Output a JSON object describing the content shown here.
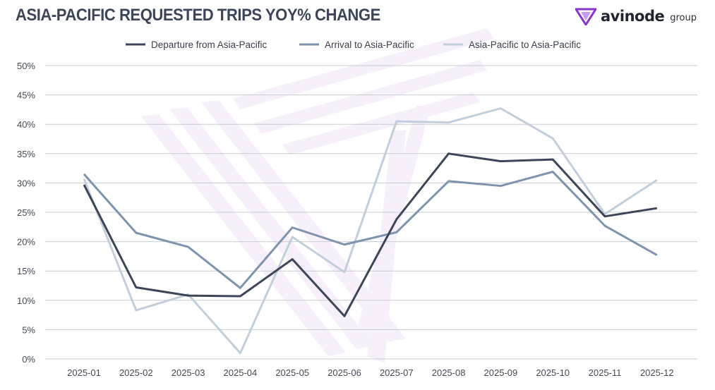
{
  "header": {
    "title": "ASIA-PACIFIC REQUESTED TRIPS YOY% CHANGE",
    "brand_name": "avinode",
    "brand_suffix": "group",
    "brand_icon": "avinode-logo-icon"
  },
  "chart_data": {
    "type": "line",
    "title": "ASIA-PACIFIC REQUESTED TRIPS YOY% CHANGE",
    "xlabel": "",
    "ylabel": "",
    "categories": [
      "2025-01",
      "2025-02",
      "2025-03",
      "2025-04",
      "2025-05",
      "2025-06",
      "2025-07",
      "2025-08",
      "2025-09",
      "2025-10",
      "2025-11",
      "2025-12"
    ],
    "ylim": [
      0,
      50
    ],
    "yticks": [
      0,
      5,
      10,
      15,
      20,
      25,
      30,
      35,
      40,
      45,
      50
    ],
    "ytick_labels": [
      "0%",
      "5%",
      "10%",
      "15%",
      "20%",
      "25%",
      "30%",
      "35%",
      "40%",
      "45%",
      "50%"
    ],
    "grid": "horizontal",
    "legend_position": "top",
    "series": [
      {
        "name": "Departure from Asia-Pacific",
        "color": "#3d4659",
        "values": [
          29.7,
          12.2,
          10.8,
          10.7,
          17.0,
          7.3,
          23.8,
          35.0,
          33.7,
          34.0,
          24.3,
          25.7
        ]
      },
      {
        "name": "Arrival to Asia-Pacific",
        "color": "#7d93ae",
        "values": [
          31.5,
          21.5,
          19.1,
          12.1,
          22.4,
          19.5,
          21.6,
          30.3,
          29.5,
          31.9,
          22.7,
          17.7
        ]
      },
      {
        "name": "Asia-Pacific to Asia-Pacific",
        "color": "#c3cedb",
        "values": [
          30.7,
          8.3,
          11.0,
          1.0,
          20.8,
          14.8,
          40.5,
          40.3,
          42.7,
          37.6,
          24.7,
          30.5
        ]
      }
    ]
  }
}
